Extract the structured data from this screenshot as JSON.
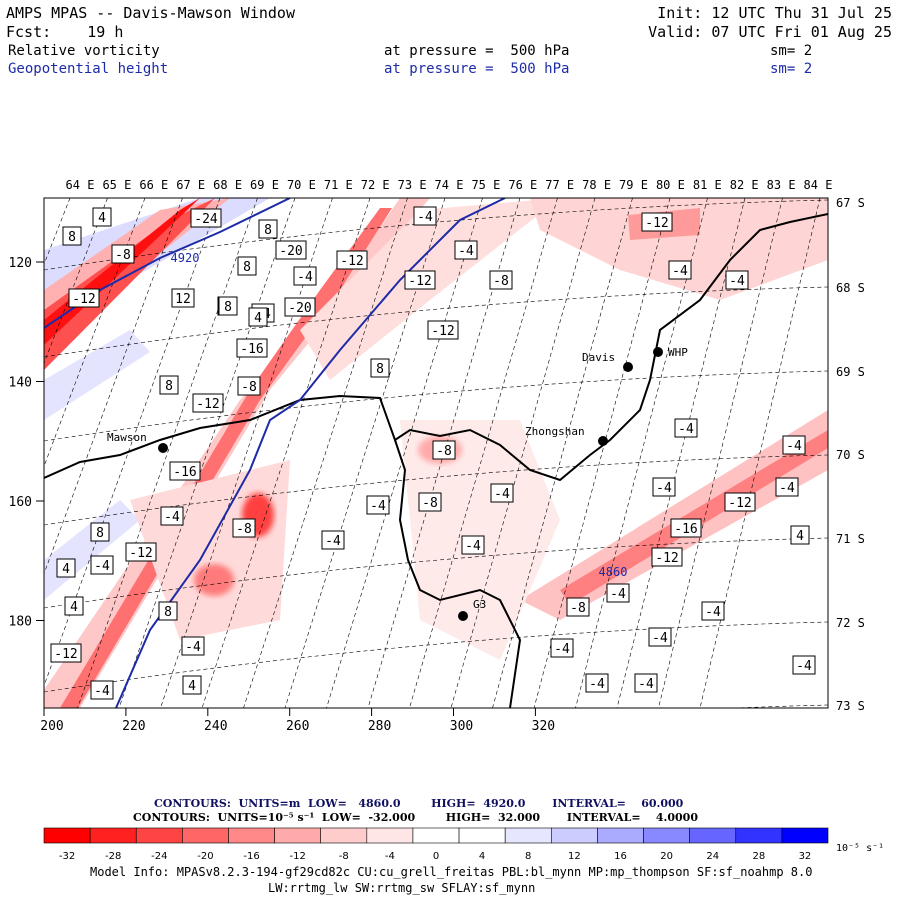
{
  "header": {
    "title": "AMPS MPAS -- Davis-Mawson Window",
    "init": "Init: 12 UTC Thu 31 Jul 25",
    "fcst": "Fcst:    19 h",
    "valid": "Valid: 07 UTC Fri 01 Aug 25"
  },
  "fields": [
    {
      "name": "Relative vorticity",
      "level": "at pressure =  500 hPa",
      "sm": "sm= 2",
      "color": "#000000"
    },
    {
      "name": "Geopotential height",
      "level": "at pressure =  500 hPa",
      "sm": "sm= 2",
      "color": "#1d2ba8"
    }
  ],
  "map": {
    "top_lon_labels": [
      "64 E",
      "65 E",
      "66 E",
      "67 E",
      "68 E",
      "69 E",
      "70 E",
      "71 E",
      "72 E",
      "73 E",
      "74 E",
      "75 E",
      "76 E",
      "77 E",
      "78 E",
      "79 E",
      "80 E",
      "81 E",
      "82 E",
      "83 E",
      "84 E"
    ],
    "right_lat_labels": [
      "67 S",
      "68 S",
      "69 S",
      "70 S",
      "71 S",
      "72 S",
      "73 S"
    ],
    "bottom_ticks": [
      "200",
      "220",
      "240",
      "260",
      "280",
      "300",
      "320"
    ],
    "left_ticks": [
      "120",
      "140",
      "160",
      "180"
    ],
    "stations": [
      {
        "name": "Mawson"
      },
      {
        "name": "Davis"
      },
      {
        "name": "WHP"
      },
      {
        "name": "Zhongshan"
      },
      {
        "name": "G3"
      }
    ],
    "contour_labels": [
      "4",
      "8",
      "-24",
      "8",
      "-8",
      "-20",
      "8",
      "-12",
      "12",
      "-12",
      "4",
      "-4",
      "-12",
      "8",
      "4",
      "-20",
      "-16",
      "8",
      "-8",
      "-12",
      "-4",
      "-4",
      "-12",
      "-8",
      "-4",
      "8",
      "-16",
      "-8",
      "-12",
      "-4",
      "-8",
      "-4",
      "-4",
      "-4",
      "-4",
      "-4",
      "-12",
      "8",
      "-4",
      "-8",
      "-4",
      "-4",
      "-12",
      "-16",
      "4",
      "-4",
      "-12",
      "-12",
      "4",
      "8",
      "-8",
      "-4",
      "-4",
      "-4",
      "-4",
      "-4",
      "-4",
      "-4",
      "4",
      "4",
      "-4",
      "-4",
      "-4",
      "-4"
    ],
    "height_labels": [
      "4920",
      "4860"
    ],
    "colors": {
      "neg_strong": "#ff0000",
      "pos_strong": "#0000ff",
      "geopotential": "#1d2ba8"
    }
  },
  "contours_info": {
    "line1": "CONTOURS:  UNITS=m  LOW=   4860.0        HIGH=  4920.0       INTERVAL=    60.000",
    "line2": "CONTOURS:  UNITS=10⁻⁵ s⁻¹  LOW=  -32.000        HIGH=  32.000       INTERVAL=    4.0000"
  },
  "colorbar": {
    "ticks": [
      "-32",
      "-28",
      "-24",
      "-20",
      "-16",
      "-12",
      "-8",
      "-4",
      "0",
      "4",
      "8",
      "12",
      "16",
      "20",
      "24",
      "28",
      "32"
    ],
    "unit": "10⁻⁵ s⁻¹",
    "colors": [
      "#ff0000",
      "#ff2020",
      "#ff4444",
      "#ff6666",
      "#ff8888",
      "#ffaaaa",
      "#ffcccc",
      "#ffe6e6",
      "#ffffff",
      "#ffffff",
      "#e6e6ff",
      "#ccccff",
      "#aaaaff",
      "#8888ff",
      "#6666ff",
      "#3333ff",
      "#0000ff"
    ]
  },
  "model_info": {
    "line1": "Model Info: MPASv8.2.3-194-gf29cd82c CU:cu_grell_freitas PBL:bl_mynn MP:mp_thompson SF:sf_noahmp 8.0",
    "line2": "LW:rrtmg_lw SW:rrtmg_sw SFLAY:sf_mynn"
  }
}
